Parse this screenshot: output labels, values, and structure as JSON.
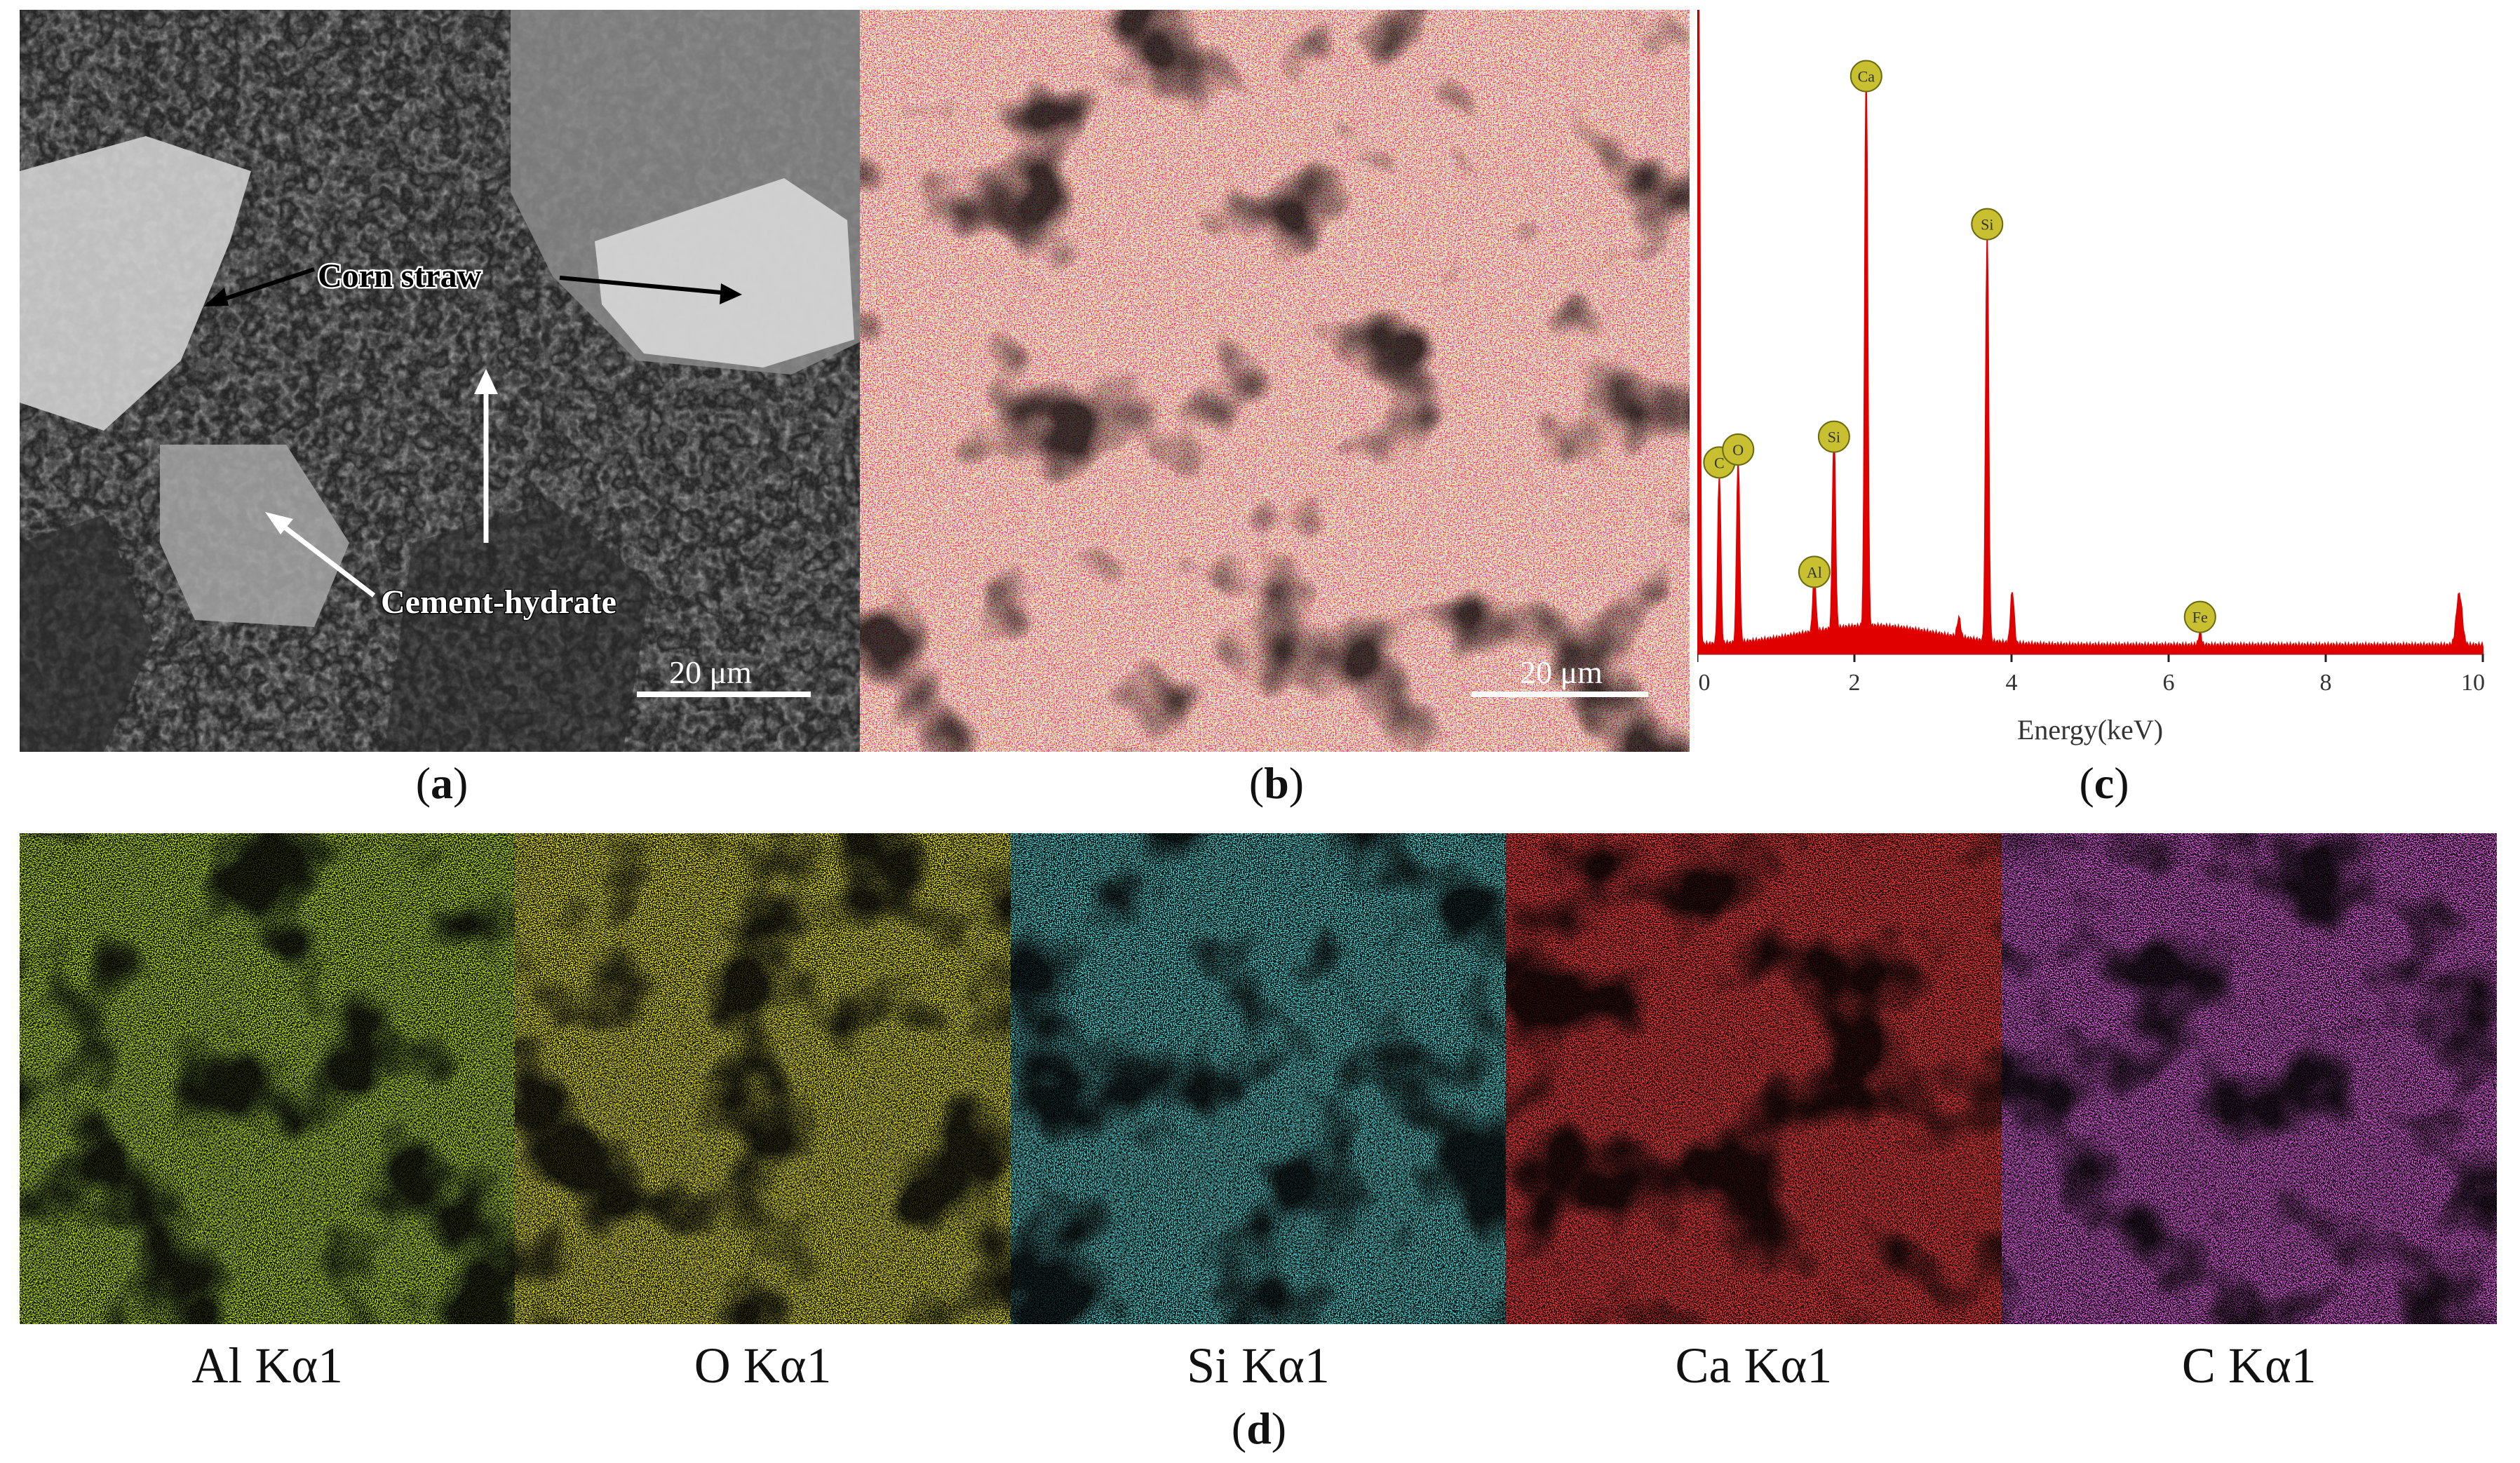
{
  "panel_a": {
    "label_corn": "Corn straw",
    "label_cement": "Cement-hydrate",
    "scale": "20 μm"
  },
  "panel_b": {
    "scale": "20 μm"
  },
  "panel_c": {
    "chart_data": {
      "type": "line",
      "xlabel": "Energy(keV)",
      "xlim": [
        0,
        10
      ],
      "x_ticks": [
        "0",
        "2",
        "4",
        "6",
        "8",
        "10"
      ],
      "peaks": [
        {
          "label": "C",
          "energy": 0.28,
          "rel_height": 0.26
        },
        {
          "label": "O",
          "energy": 0.52,
          "rel_height": 0.28
        },
        {
          "label": "Al",
          "energy": 1.49,
          "rel_height": 0.09
        },
        {
          "label": "Si",
          "energy": 1.74,
          "rel_height": 0.3
        },
        {
          "label": "Ca",
          "energy": 2.15,
          "rel_height": 0.86
        },
        {
          "label": "Si",
          "energy": 3.69,
          "rel_height": 0.63
        },
        {
          "label": "Fe",
          "energy": 6.4,
          "rel_height": 0.02
        }
      ],
      "series_color": "#e00000"
    }
  },
  "captions": {
    "a": "a",
    "b": "b",
    "c": "c",
    "d": "d"
  },
  "maps": [
    {
      "label": "Al Kα1",
      "color": "#8fe000"
    },
    {
      "label": "O Kα1",
      "color": "#e6e000"
    },
    {
      "label": "Si Kα1",
      "color": "#14c8c8"
    },
    {
      "label": "Ca Kα1",
      "color": "#ff0a0a"
    },
    {
      "label": "C Kα1",
      "color": "#e020e0"
    }
  ]
}
